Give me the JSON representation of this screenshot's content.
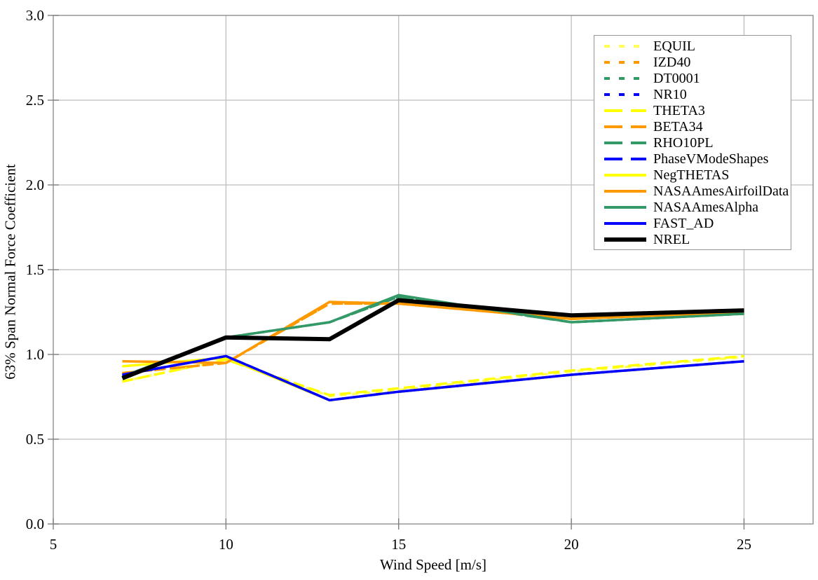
{
  "colors": {
    "background": "#FFFFFF",
    "grid": "#BEBEBE",
    "border": "#959595",
    "tick": "#7F7F7F",
    "text": "#000000"
  },
  "chart_data": {
    "type": "line",
    "title": "",
    "xlabel": "Wind Speed [m/s]",
    "ylabel": "63% Span Normal Force Coefficient",
    "xlim": [
      5,
      27
    ],
    "ylim": [
      0,
      3
    ],
    "grid": true,
    "legend_position": "top-right-inside",
    "x_ticks": [
      5,
      10,
      15,
      20,
      25
    ],
    "x_tick_labels": [
      "5",
      "10",
      "15",
      "20",
      "25"
    ],
    "y_ticks": [
      0,
      0.5,
      1,
      1.5,
      2,
      2.5,
      3
    ],
    "y_tick_labels": [
      "0.0",
      "0.5",
      "1.0",
      "1.5",
      "2.0",
      "2.5",
      "3.0"
    ],
    "x": [
      7,
      10,
      13,
      15,
      20,
      25
    ],
    "series": [
      {
        "name": "EQUIL",
        "color": "#FFFF55",
        "style": "short-dash",
        "width": 3.5,
        "values": [
          0.84,
          0.97,
          0.755,
          0.79,
          0.9,
          0.985
        ]
      },
      {
        "name": "IZD40",
        "color": "#FF9900",
        "style": "short-dash",
        "width": 3.5,
        "values": [
          0.89,
          0.95,
          1.3,
          1.3,
          1.21,
          1.25
        ]
      },
      {
        "name": "DT0001",
        "color": "#339966",
        "style": "short-dash",
        "width": 3.5,
        "values": [
          0.87,
          1.1,
          1.19,
          1.34,
          1.19,
          1.24
        ]
      },
      {
        "name": "NR10",
        "color": "#0000FF",
        "style": "short-dash",
        "width": 3.5,
        "values": [
          0.88,
          0.99,
          0.73,
          0.78,
          0.88,
          0.96
        ]
      },
      {
        "name": "THETA3",
        "color": "#FFFF00",
        "style": "long-dash",
        "width": 3.5,
        "values": [
          0.84,
          0.97,
          0.76,
          0.8,
          0.905,
          0.99
        ]
      },
      {
        "name": "BETA34",
        "color": "#FF9900",
        "style": "long-dash",
        "width": 3.5,
        "values": [
          0.89,
          0.95,
          1.3,
          1.3,
          1.21,
          1.25
        ]
      },
      {
        "name": "RHO10PL",
        "color": "#339966",
        "style": "long-dash",
        "width": 3.5,
        "values": [
          0.87,
          1.1,
          1.19,
          1.34,
          1.19,
          1.24
        ]
      },
      {
        "name": "PhaseVModeShapes",
        "color": "#0000FF",
        "style": "long-dash",
        "width": 3.5,
        "values": [
          0.88,
          0.99,
          0.73,
          0.78,
          0.88,
          0.96
        ]
      },
      {
        "name": "NegTHETAS",
        "color": "#FFFF00",
        "style": "solid",
        "width": 3.5,
        "values": [
          0.93,
          0.98,
          0.73,
          0.78,
          0.88,
          0.96
        ]
      },
      {
        "name": "NASAAmesAirfoilData",
        "color": "#FF9900",
        "style": "solid",
        "width": 3.5,
        "values": [
          0.96,
          0.95,
          1.31,
          1.3,
          1.21,
          1.25
        ]
      },
      {
        "name": "NASAAmesAlpha",
        "color": "#339966",
        "style": "solid",
        "width": 3.5,
        "values": [
          0.87,
          1.1,
          1.19,
          1.35,
          1.19,
          1.24
        ]
      },
      {
        "name": "FAST_AD",
        "color": "#0000FF",
        "style": "solid",
        "width": 3.5,
        "values": [
          0.88,
          0.99,
          0.73,
          0.78,
          0.88,
          0.96
        ]
      },
      {
        "name": "NREL",
        "color": "#000000",
        "style": "solid",
        "width": 6.0,
        "values": [
          0.86,
          1.1,
          1.09,
          1.32,
          1.23,
          1.26
        ]
      }
    ]
  }
}
